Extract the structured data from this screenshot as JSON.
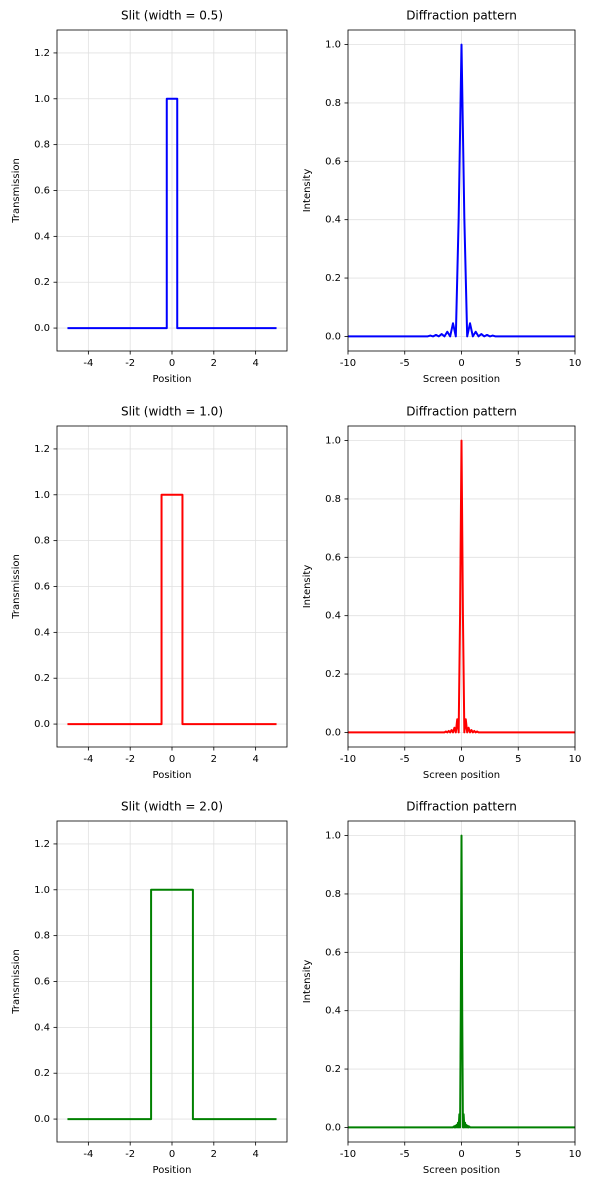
{
  "chart_data": [
    {
      "type": "line",
      "title": "Slit (width = 0.5)",
      "xlabel": "Position",
      "ylabel": "Transmission",
      "color": "#0000ff",
      "grid": true,
      "x": [
        -5,
        -0.25,
        -0.25,
        0.25,
        0.25,
        5
      ],
      "values": [
        0,
        0,
        1,
        1,
        0,
        0
      ],
      "xlim": [
        -5.5,
        5.5
      ],
      "xticks": [
        -4,
        -2,
        0,
        2,
        4
      ],
      "ylim": [
        -0.1,
        1.3
      ],
      "yticks": [
        {
          "value": 0,
          "label": "0.0"
        },
        0.2,
        0.4,
        0.6,
        0.8,
        {
          "value": 1,
          "label": "1.0"
        },
        1.2
      ]
    },
    {
      "type": "line",
      "title": "Diffraction pattern",
      "xlabel": "Screen position",
      "ylabel": "Intensity",
      "color": "#0000ff",
      "grid": true,
      "x": [
        -10,
        -3,
        -2.75,
        -2.5,
        -2.25,
        -2,
        -1.75,
        -1.5,
        -1.25,
        -1,
        -0.75,
        -0.5,
        -0.25,
        0,
        0.25,
        0.5,
        0.75,
        1,
        1.25,
        1.5,
        1.75,
        2,
        2.25,
        2.5,
        2.75,
        3,
        10
      ],
      "values": [
        0,
        0,
        0.003,
        0,
        0.005,
        0,
        0.008,
        0,
        0.016,
        0,
        0.045,
        0,
        0.405,
        1,
        0.405,
        0,
        0.045,
        0,
        0.016,
        0,
        0.008,
        0,
        0.005,
        0,
        0.003,
        0,
        0
      ],
      "xlim": [
        -10,
        10
      ],
      "xticks": [
        -10,
        -5,
        0,
        5,
        10
      ],
      "ylim": [
        -0.05,
        1.05
      ],
      "yticks": [
        {
          "value": 0,
          "label": "0.0"
        },
        0.2,
        0.4,
        0.6,
        0.8,
        {
          "value": 1,
          "label": "1.0"
        }
      ]
    },
    {
      "type": "line",
      "title": "Slit (width = 1.0)",
      "xlabel": "Position",
      "ylabel": "Transmission",
      "color": "#ff0000",
      "grid": true,
      "x": [
        -5,
        -0.5,
        -0.5,
        0.5,
        0.5,
        5
      ],
      "values": [
        0,
        0,
        1,
        1,
        0,
        0
      ],
      "xlim": [
        -5.5,
        5.5
      ],
      "xticks": [
        -4,
        -2,
        0,
        2,
        4
      ],
      "ylim": [
        -0.1,
        1.3
      ],
      "yticks": [
        {
          "value": 0,
          "label": "0.0"
        },
        0.2,
        0.4,
        0.6,
        0.8,
        {
          "value": 1,
          "label": "1.0"
        },
        1.2
      ]
    },
    {
      "type": "line",
      "title": "Diffraction pattern",
      "xlabel": "Screen position",
      "ylabel": "Intensity",
      "color": "#ff0000",
      "grid": true,
      "x": [
        -10,
        -1.5,
        -1.375,
        -1.25,
        -1.125,
        -1,
        -0.875,
        -0.75,
        -0.625,
        -0.5,
        -0.375,
        -0.25,
        -0.125,
        0,
        0.125,
        0.25,
        0.375,
        0.5,
        0.625,
        0.75,
        0.875,
        1,
        1.125,
        1.25,
        1.375,
        1.5,
        10
      ],
      "values": [
        0,
        0,
        0.003,
        0,
        0.005,
        0,
        0.008,
        0,
        0.016,
        0,
        0.045,
        0,
        0.405,
        1,
        0.405,
        0,
        0.045,
        0,
        0.016,
        0,
        0.008,
        0,
        0.005,
        0,
        0.003,
        0,
        0
      ],
      "xlim": [
        -10,
        10
      ],
      "xticks": [
        -10,
        -5,
        0,
        5,
        10
      ],
      "ylim": [
        -0.05,
        1.05
      ],
      "yticks": [
        {
          "value": 0,
          "label": "0.0"
        },
        0.2,
        0.4,
        0.6,
        0.8,
        {
          "value": 1,
          "label": "1.0"
        }
      ]
    },
    {
      "type": "line",
      "title": "Slit (width = 2.0)",
      "xlabel": "Position",
      "ylabel": "Transmission",
      "color": "#008000",
      "grid": true,
      "x": [
        -5,
        -1,
        -1,
        1,
        1,
        5
      ],
      "values": [
        0,
        0,
        1,
        1,
        0,
        0
      ],
      "xlim": [
        -5.5,
        5.5
      ],
      "xticks": [
        -4,
        -2,
        0,
        2,
        4
      ],
      "ylim": [
        -0.1,
        1.3
      ],
      "yticks": [
        {
          "value": 0,
          "label": "0.0"
        },
        0.2,
        0.4,
        0.6,
        0.8,
        {
          "value": 1,
          "label": "1.0"
        },
        1.2
      ]
    },
    {
      "type": "line",
      "title": "Diffraction pattern",
      "xlabel": "Screen position",
      "ylabel": "Intensity",
      "color": "#008000",
      "grid": true,
      "x": [
        -10,
        -0.75,
        -0.6875,
        -0.625,
        -0.5625,
        -0.5,
        -0.4375,
        -0.375,
        -0.3125,
        -0.25,
        -0.1875,
        -0.125,
        -0.0625,
        0,
        0.0625,
        0.125,
        0.1875,
        0.25,
        0.3125,
        0.375,
        0.4375,
        0.5,
        0.5625,
        0.625,
        0.6875,
        0.75,
        10
      ],
      "values": [
        0,
        0,
        0.003,
        0,
        0.005,
        0,
        0.008,
        0,
        0.016,
        0,
        0.045,
        0,
        0.405,
        1,
        0.405,
        0,
        0.045,
        0,
        0.016,
        0,
        0.008,
        0,
        0.005,
        0,
        0.003,
        0,
        0
      ],
      "xlim": [
        -10,
        10
      ],
      "xticks": [
        -10,
        -5,
        0,
        5,
        10
      ],
      "ylim": [
        -0.05,
        1.05
      ],
      "yticks": [
        {
          "value": 0,
          "label": "0.0"
        },
        0.2,
        0.4,
        0.6,
        0.8,
        {
          "value": 1,
          "label": "1.0"
        }
      ]
    }
  ]
}
